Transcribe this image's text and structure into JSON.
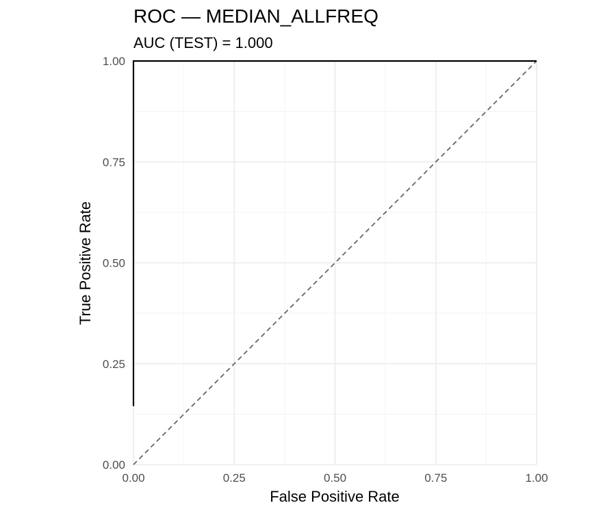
{
  "chart_data": {
    "type": "line",
    "title": "ROC — MEDIAN_ALLFREQ",
    "subtitle": "AUC (TEST) = 1.000",
    "xlabel": "False Positive Rate",
    "ylabel": "True Positive Rate",
    "xlim": [
      0,
      1
    ],
    "ylim": [
      0,
      1
    ],
    "x_ticks": [
      0,
      0.25,
      0.5,
      0.75,
      1
    ],
    "x_tick_labels": [
      "0.00",
      "0.25",
      "0.50",
      "0.75",
      "1.00"
    ],
    "y_ticks": [
      0,
      0.25,
      0.5,
      0.75,
      1
    ],
    "y_tick_labels": [
      "0.00",
      "0.25",
      "0.50",
      "0.75",
      "1.00"
    ],
    "grid": true,
    "legend": "none",
    "series": [
      {
        "color": "#000000",
        "style": "solid",
        "x": [
          0,
          0,
          1
        ],
        "y": [
          0.145,
          1,
          1
        ]
      },
      {
        "color": "#666666",
        "style": "dashed",
        "x": [
          0,
          1
        ],
        "y": [
          0,
          1
        ]
      }
    ]
  }
}
